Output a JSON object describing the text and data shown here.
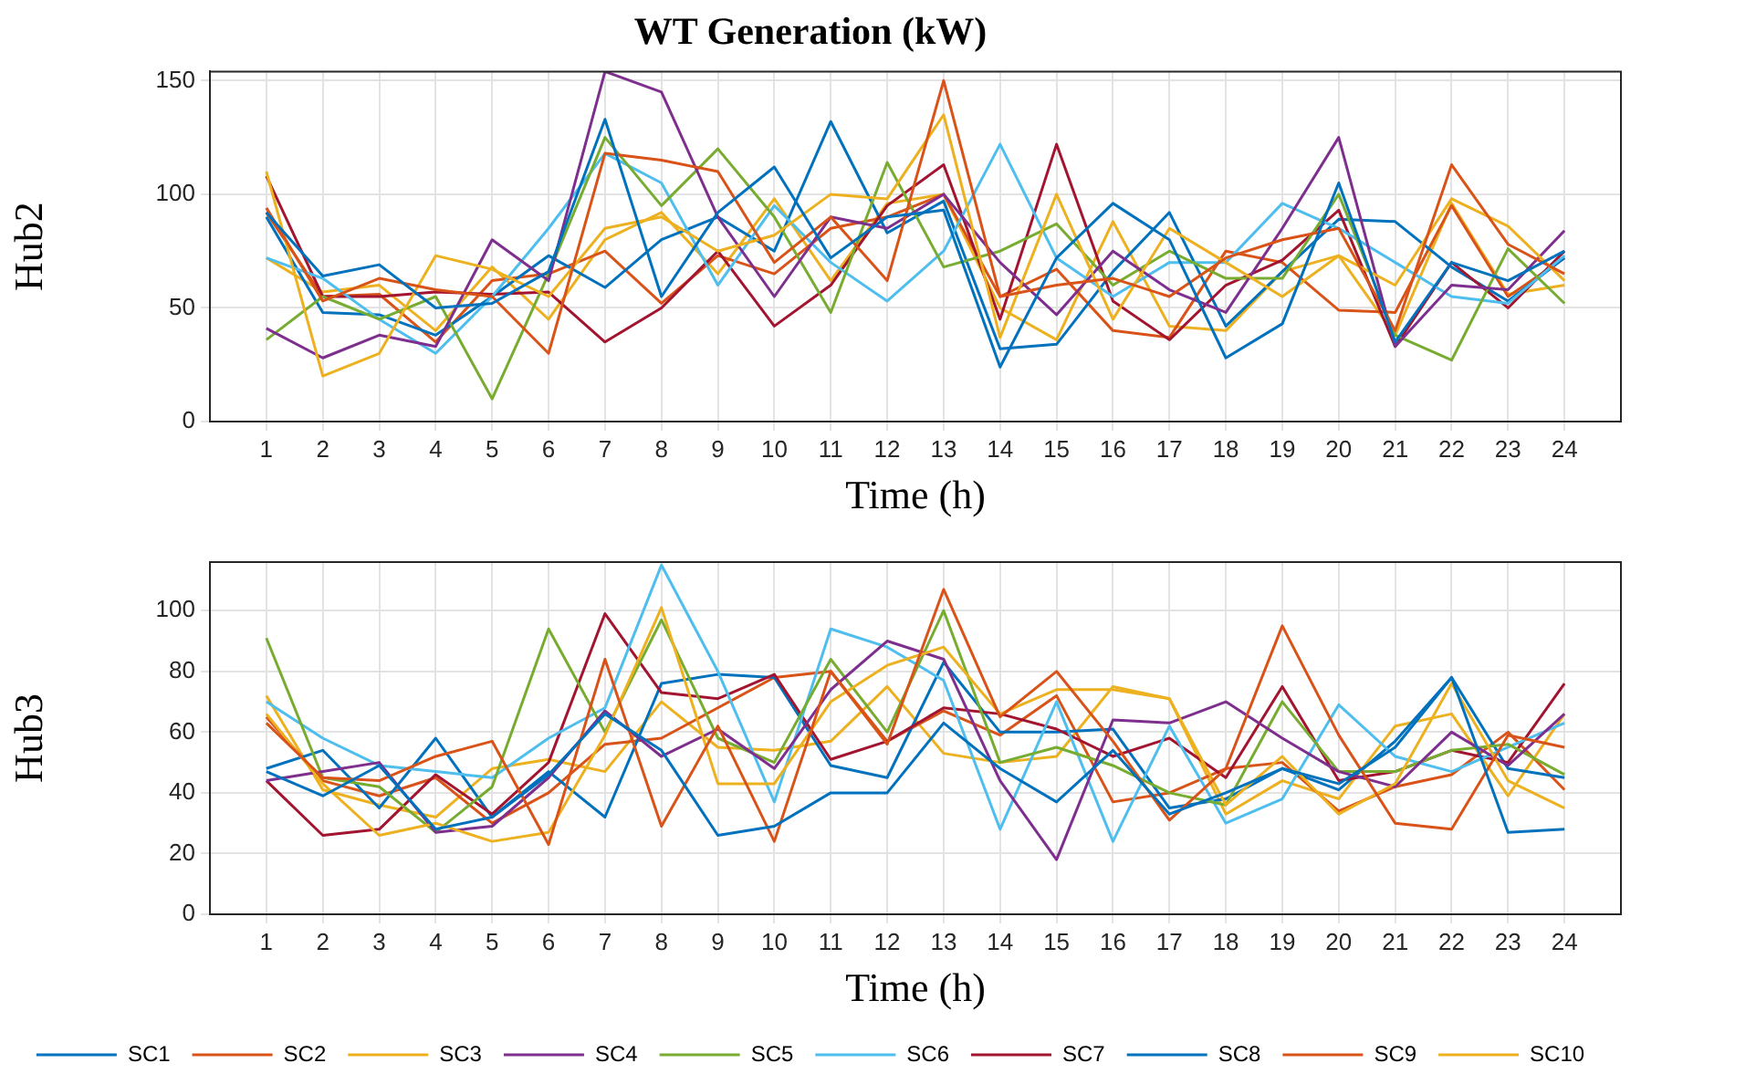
{
  "chart_data": [
    {
      "type": "line",
      "title": "WT Generation (kW)",
      "xlabel": "Time (h)",
      "ylabel": "Hub2",
      "grid": true,
      "legend": false,
      "marker": "none",
      "line_style": "solid",
      "x": [
        1,
        2,
        3,
        4,
        5,
        6,
        7,
        8,
        9,
        10,
        11,
        12,
        13,
        14,
        15,
        16,
        17,
        18,
        19,
        20,
        21,
        22,
        23,
        24
      ],
      "xlim": [
        0,
        25
      ],
      "xticks": [
        1,
        2,
        3,
        4,
        5,
        6,
        7,
        8,
        9,
        10,
        11,
        12,
        13,
        14,
        15,
        16,
        17,
        18,
        19,
        20,
        21,
        22,
        23,
        24
      ],
      "ylim": [
        0,
        154
      ],
      "yticks": [
        0,
        50,
        100,
        150
      ],
      "series": [
        {
          "color": "#0072bd",
          "values": [
            92,
            64,
            69,
            50,
            52,
            66,
            133,
            55,
            92,
            112,
            72,
            90,
            93,
            24,
            72,
            96,
            80,
            28,
            43,
            105,
            35,
            70,
            62,
            75
          ]
        },
        {
          "color": "#d95319",
          "values": [
            94,
            53,
            63,
            58,
            55,
            30,
            118,
            115,
            110,
            70,
            90,
            62,
            150,
            55,
            60,
            63,
            55,
            72,
            80,
            85,
            40,
            113,
            78,
            65
          ]
        },
        {
          "color": "#edb120",
          "values": [
            110,
            20,
            30,
            73,
            67,
            55,
            85,
            90,
            75,
            82,
            100,
            98,
            135,
            37,
            100,
            45,
            85,
            70,
            55,
            73,
            60,
            98,
            86,
            62
          ]
        },
        {
          "color": "#7e2f8e",
          "values": [
            41,
            28,
            38,
            33,
            80,
            62,
            154,
            145,
            90,
            55,
            90,
            85,
            100,
            70,
            47,
            75,
            58,
            48,
            85,
            125,
            33,
            60,
            58,
            84
          ]
        },
        {
          "color": "#77ac30",
          "values": [
            36,
            55,
            45,
            55,
            10,
            65,
            125,
            95,
            120,
            90,
            48,
            114,
            68,
            75,
            87,
            60,
            75,
            63,
            63,
            100,
            38,
            27,
            76,
            52
          ]
        },
        {
          "color": "#4dbeee",
          "values": [
            72,
            63,
            45,
            30,
            55,
            85,
            118,
            105,
            60,
            95,
            70,
            53,
            75,
            122,
            72,
            55,
            70,
            70,
            96,
            85,
            70,
            55,
            52,
            73
          ]
        },
        {
          "color": "#a2142f",
          "values": [
            108,
            55,
            55,
            57,
            56,
            57,
            35,
            50,
            75,
            42,
            60,
            95,
            113,
            45,
            122,
            53,
            36,
            60,
            71,
            93,
            33,
            70,
            50,
            75
          ]
        },
        {
          "color": "#0072bd",
          "values": [
            90,
            48,
            47,
            38,
            55,
            73,
            59,
            80,
            90,
            75,
            132,
            83,
            97,
            32,
            34,
            66,
            92,
            42,
            66,
            89,
            88,
            68,
            53,
            72
          ]
        },
        {
          "color": "#d95319",
          "values": [
            92,
            55,
            56,
            35,
            62,
            65,
            75,
            52,
            73,
            65,
            85,
            90,
            100,
            55,
            67,
            40,
            37,
            75,
            70,
            49,
            48,
            95,
            55,
            72
          ]
        },
        {
          "color": "#edb120",
          "values": [
            72,
            57,
            60,
            40,
            68,
            45,
            80,
            92,
            65,
            98,
            62,
            96,
            100,
            50,
            36,
            88,
            42,
            40,
            66,
            73,
            38,
            96,
            56,
            60
          ]
        }
      ]
    },
    {
      "type": "line",
      "xlabel": "Time (h)",
      "ylabel": "Hub3",
      "grid": true,
      "legend": "bottom",
      "marker": "none",
      "line_style": "solid",
      "x": [
        1,
        2,
        3,
        4,
        5,
        6,
        7,
        8,
        9,
        10,
        11,
        12,
        13,
        14,
        15,
        16,
        17,
        18,
        19,
        20,
        21,
        22,
        23,
        24
      ],
      "xlim": [
        0,
        25
      ],
      "xticks": [
        1,
        2,
        3,
        4,
        5,
        6,
        7,
        8,
        9,
        10,
        11,
        12,
        13,
        14,
        15,
        16,
        17,
        18,
        19,
        20,
        21,
        22,
        23,
        24
      ],
      "ylim": [
        0,
        116
      ],
      "yticks": [
        0,
        20,
        40,
        60,
        80,
        100
      ],
      "series": [
        {
          "name": "SC1",
          "color": "#0072bd",
          "values": [
            47,
            39,
            49,
            28,
            32,
            46,
            66,
            54,
            26,
            29,
            40,
            40,
            63,
            48,
            37,
            54,
            33,
            40,
            48,
            43,
            55,
            78,
            27,
            28
          ]
        },
        {
          "name": "SC2",
          "color": "#d95319",
          "values": [
            63,
            45,
            44,
            52,
            57,
            23,
            84,
            29,
            62,
            24,
            80,
            56,
            107,
            65,
            80,
            57,
            31,
            48,
            95,
            59,
            30,
            28,
            59,
            55
          ]
        },
        {
          "name": "SC3",
          "color": "#edb120",
          "values": [
            66,
            43,
            26,
            30,
            24,
            27,
            59,
            101,
            43,
            43,
            70,
            82,
            88,
            66,
            74,
            74,
            71,
            36,
            52,
            33,
            43,
            76,
            44,
            35
          ]
        },
        {
          "name": "SC4",
          "color": "#7e2f8e",
          "values": [
            44,
            47,
            50,
            27,
            29,
            45,
            67,
            52,
            61,
            48,
            74,
            90,
            84,
            44,
            18,
            64,
            63,
            70,
            58,
            47,
            42,
            60,
            49,
            66
          ]
        },
        {
          "name": "SC5",
          "color": "#77ac30",
          "values": [
            91,
            45,
            42,
            27,
            42,
            94,
            60,
            97,
            58,
            50,
            84,
            60,
            100,
            50,
            55,
            49,
            40,
            36,
            70,
            47,
            47,
            54,
            56,
            46
          ]
        },
        {
          "name": "SC6",
          "color": "#4dbeee",
          "values": [
            70,
            58,
            49,
            47,
            45,
            58,
            68,
            115,
            80,
            37,
            94,
            88,
            77,
            28,
            70,
            24,
            62,
            30,
            38,
            69,
            52,
            47,
            55,
            63
          ]
        },
        {
          "name": "SC7",
          "color": "#a2142f",
          "values": [
            44,
            26,
            28,
            46,
            33,
            50,
            99,
            73,
            71,
            79,
            51,
            57,
            68,
            66,
            61,
            52,
            58,
            45,
            75,
            44,
            47,
            54,
            50,
            76
          ]
        },
        {
          "name": "SC8",
          "color": "#0072bd",
          "values": [
            48,
            54,
            35,
            58,
            32,
            47,
            32,
            76,
            79,
            78,
            49,
            45,
            83,
            60,
            60,
            61,
            35,
            38,
            48,
            41,
            57,
            78,
            48,
            45
          ]
        },
        {
          "name": "SC9",
          "color": "#d95319",
          "values": [
            65,
            44,
            39,
            45,
            30,
            40,
            56,
            58,
            68,
            78,
            80,
            57,
            67,
            59,
            72,
            37,
            40,
            48,
            50,
            34,
            42,
            46,
            60,
            41
          ]
        },
        {
          "name": "SC10",
          "color": "#edb120",
          "values": [
            72,
            41,
            36,
            32,
            48,
            51,
            47,
            70,
            55,
            54,
            57,
            75,
            53,
            50,
            52,
            75,
            71,
            33,
            44,
            38,
            62,
            66,
            39,
            66
          ]
        }
      ]
    }
  ]
}
